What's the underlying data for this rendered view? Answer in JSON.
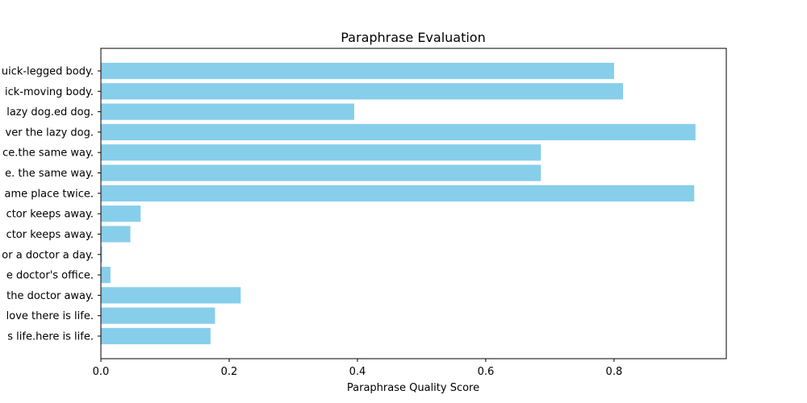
{
  "chart_data": {
    "type": "bar",
    "orientation": "horizontal",
    "title": "Paraphrase Evaluation",
    "xlabel": "Paraphrase Quality Score",
    "ylabel": "",
    "xlim": [
      0,
      0.975
    ],
    "xticks": [
      0.0,
      0.2,
      0.4,
      0.6,
      0.8
    ],
    "xtick_labels": [
      "0.0",
      "0.2",
      "0.4",
      "0.6",
      "0.8"
    ],
    "grid": false,
    "bar_color": "#87ceeb",
    "categories": [
      "uick-legged body.",
      "ick-moving body.",
      "lazy dog.ed dog.",
      "ver the lazy dog.",
      "ce.the same way.",
      "e. the same way.",
      "ame place twice.",
      "ctor keeps away.",
      "ctor keeps away.",
      "or a doctor a day.",
      "e doctor's office.",
      "the doctor away.",
      "love there is life.",
      "s life.here is life."
    ],
    "values": [
      0.8,
      0.814,
      0.395,
      0.927,
      0.686,
      0.686,
      0.925,
      0.062,
      0.046,
      0.002,
      0.015,
      0.218,
      0.178,
      0.171
    ]
  }
}
